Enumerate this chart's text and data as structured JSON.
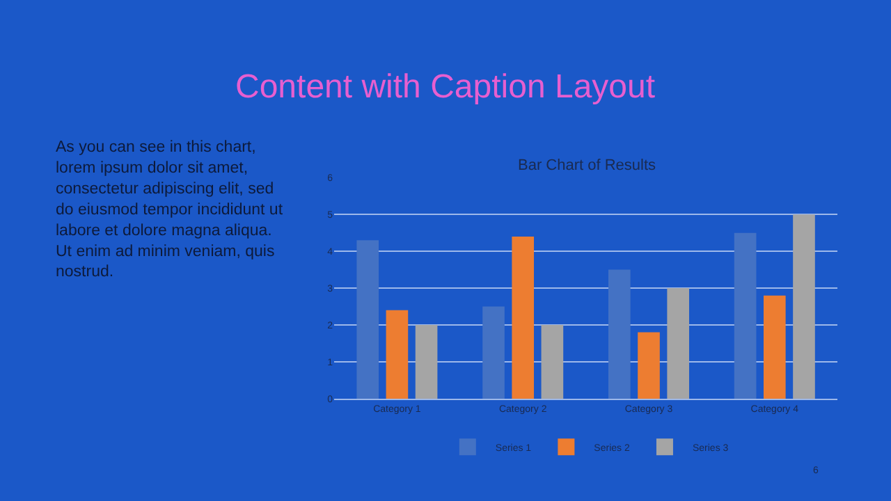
{
  "chart_data": {
    "type": "bar",
    "title": "Content with Caption Layout",
    "subtitle": "Bar Chart of Results",
    "categories": [
      "Category 1",
      "Category 2",
      "Category 3",
      "Category 4"
    ],
    "series": [
      {
        "name": "Series 1",
        "color": "#4472c4",
        "values": [
          4.3,
          2.5,
          3.5,
          4.5
        ]
      },
      {
        "name": "Series 2",
        "color": "#ed7d31",
        "values": [
          2.4,
          4.4,
          1.8,
          2.8
        ]
      },
      {
        "name": "Series 3",
        "color": "#a5a5a5",
        "values": [
          2,
          2,
          3,
          5
        ]
      }
    ],
    "ylim": [
      0,
      6
    ],
    "yticks": [
      0,
      1,
      2,
      3,
      4,
      5,
      6
    ],
    "grid": "y",
    "legend": "bottom",
    "annotations": [
      "As you can see in this chart, lorem ipsum dolor sit amet, consectetur adipiscing elit, sed do eiusmod tempor incididunt ut labore et dolore magna aliqua. Ut enim ad minim veniam, quis nostrud.",
      "6"
    ]
  }
}
